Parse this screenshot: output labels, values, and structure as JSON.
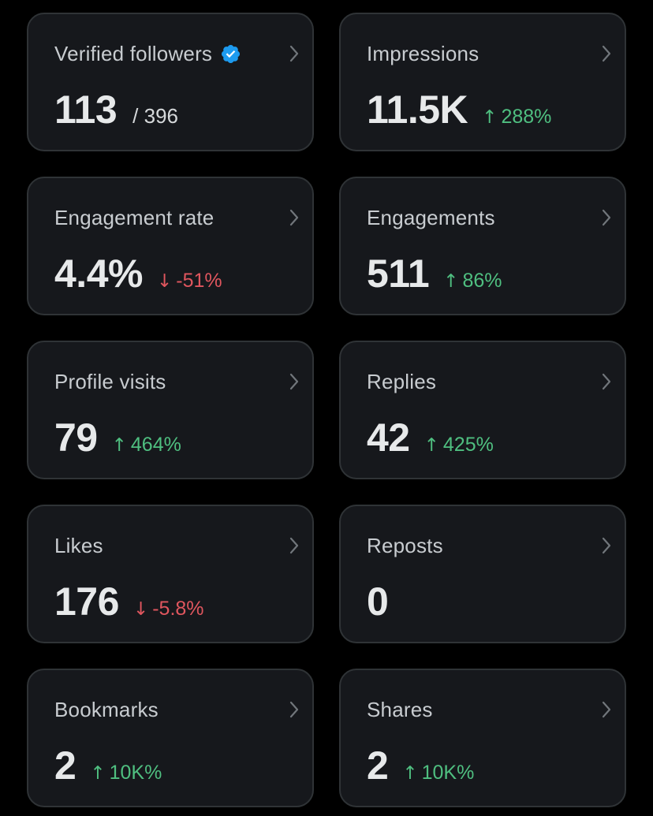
{
  "colors": {
    "background": "#000000",
    "card": "#16181c",
    "card_border": "#2f3336",
    "positive": "#4fbf80",
    "negative": "#e0565e",
    "verified": "#1d9bf0"
  },
  "cards": [
    {
      "label": "Verified followers",
      "value": "113",
      "total": "/ 396",
      "icon": "verified-badge-icon"
    },
    {
      "label": "Impressions",
      "value": "11.5K",
      "change": {
        "arrow": "↑",
        "text": "288%",
        "direction": "up"
      }
    },
    {
      "label": "Engagement rate",
      "value": "4.4%",
      "change": {
        "arrow": "↓",
        "text": "-51%",
        "direction": "down"
      }
    },
    {
      "label": "Engagements",
      "value": "511",
      "change": {
        "arrow": "↑",
        "text": "86%",
        "direction": "up"
      }
    },
    {
      "label": "Profile visits",
      "value": "79",
      "change": {
        "arrow": "↑",
        "text": "464%",
        "direction": "up"
      }
    },
    {
      "label": "Replies",
      "value": "42",
      "change": {
        "arrow": "↑",
        "text": "425%",
        "direction": "up"
      }
    },
    {
      "label": "Likes",
      "value": "176",
      "change": {
        "arrow": "↓",
        "text": "-5.8%",
        "direction": "down"
      }
    },
    {
      "label": "Reposts",
      "value": "0"
    },
    {
      "label": "Bookmarks",
      "value": "2",
      "change": {
        "arrow": "↑",
        "text": "10K%",
        "direction": "up"
      }
    },
    {
      "label": "Shares",
      "value": "2",
      "change": {
        "arrow": "↑",
        "text": "10K%",
        "direction": "up"
      }
    }
  ]
}
